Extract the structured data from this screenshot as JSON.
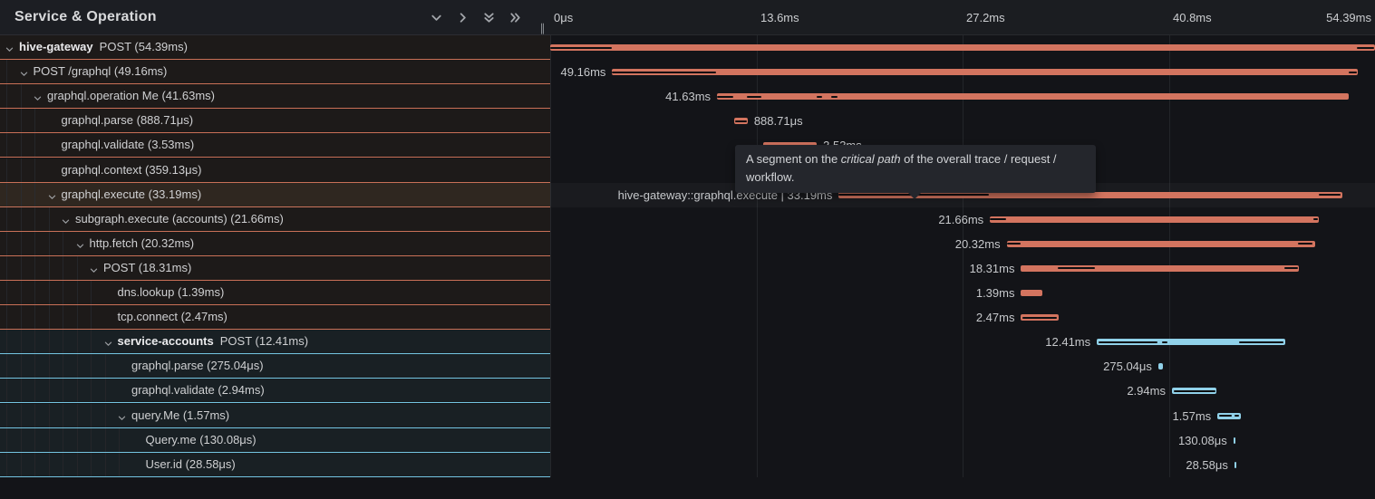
{
  "panel": {
    "title": "Service & Operation",
    "header_icons": [
      "chevron-down-icon",
      "chevron-right-icon",
      "double-chevron-down-icon",
      "double-chevron-right-icon"
    ],
    "resize_handle": "∥"
  },
  "colors": {
    "hive_gateway_service": "#d3745f",
    "hive_gateway_underline": "#c97057",
    "service_accounts_service": "#90d1e9",
    "service_accounts_underline": "#74c5e2",
    "critical_path": "#0d0e10",
    "row_tint_salmon": "#1d1a19",
    "row_tint_blue": "#192024",
    "row_highlight": "#292019"
  },
  "timeline": {
    "total_ms": 54.39,
    "ticks": [
      {
        "label": "0μs",
        "ms": 0
      },
      {
        "label": "13.6ms",
        "ms": 13.6
      },
      {
        "label": "27.2ms",
        "ms": 27.2
      },
      {
        "label": "40.8ms",
        "ms": 40.8
      },
      {
        "label": "54.39ms",
        "ms": 54.39
      }
    ]
  },
  "tooltip": {
    "prefix": "A segment on the ",
    "emphasis": "critical path",
    "suffix": " of the overall trace / request / workflow."
  },
  "spans": [
    {
      "service": "hive-gateway",
      "label": "POST (54.39ms)",
      "level": 0,
      "expandable": true,
      "color": "salmon",
      "start_ms": 0,
      "duration_ms": 54.39,
      "bar_label": "",
      "label_side": "left",
      "critical_ms": [
        [
          0,
          4.05
        ],
        [
          53.2,
          54.35
        ]
      ],
      "highlighted": false
    },
    {
      "service": null,
      "label": "POST /graphql (49.16ms)",
      "level": 1,
      "expandable": true,
      "color": "salmon",
      "start_ms": 4.09,
      "duration_ms": 49.16,
      "bar_label": "49.16ms",
      "label_side": "left",
      "critical_ms": [
        [
          4.09,
          10.95
        ],
        [
          52.65,
          53.2
        ]
      ],
      "highlighted": false
    },
    {
      "service": null,
      "label": "graphql.operation Me (41.63ms)",
      "level": 2,
      "expandable": true,
      "color": "salmon",
      "start_ms": 11.0,
      "duration_ms": 41.63,
      "bar_label": "41.63ms",
      "label_side": "left",
      "critical_ms": [
        [
          11.0,
          12.1
        ],
        [
          12.95,
          13.95
        ],
        [
          17.6,
          17.95
        ],
        [
          18.55,
          18.95
        ]
      ],
      "highlighted": false
    },
    {
      "service": null,
      "label": "graphql.parse (888.71μs)",
      "level": 3,
      "expandable": false,
      "color": "salmon",
      "start_ms": 12.13,
      "duration_ms": 0.88871,
      "bar_label": "888.71μs",
      "label_side": "right",
      "critical_ms": [
        [
          12.2,
          12.95
        ]
      ],
      "highlighted": false
    },
    {
      "service": null,
      "label": "graphql.validate (3.53ms)",
      "level": 3,
      "expandable": false,
      "color": "salmon",
      "start_ms": 14.05,
      "duration_ms": 3.53,
      "bar_label": "3.53ms",
      "label_side": "right",
      "critical_ms": [
        [
          14.1,
          17.5
        ]
      ],
      "highlighted": false
    },
    {
      "service": null,
      "label": "graphql.context (359.13μs)",
      "level": 3,
      "expandable": false,
      "color": "salmon",
      "start_ms": 17.95,
      "duration_ms": 0.35913,
      "bar_label": "359.13μs",
      "label_side": "right",
      "critical_ms": [],
      "highlighted": false
    },
    {
      "service": null,
      "label": "graphql.execute (33.19ms)",
      "level": 3,
      "expandable": true,
      "color": "salmon",
      "start_ms": 19.03,
      "duration_ms": 33.19,
      "bar_label": "hive-gateway::graphql.execute | 33.19ms",
      "label_side": "left",
      "critical_ms": [
        [
          19.03,
          28.95
        ],
        [
          50.7,
          52.1
        ]
      ],
      "highlighted": true
    },
    {
      "service": null,
      "label": "subgraph.execute (accounts) (21.66ms)",
      "level": 4,
      "expandable": true,
      "color": "salmon",
      "start_ms": 29.0,
      "duration_ms": 21.66,
      "bar_label": "21.66ms",
      "label_side": "left",
      "critical_ms": [
        [
          29.0,
          30.05
        ],
        [
          50.35,
          50.62
        ]
      ],
      "highlighted": false
    },
    {
      "service": null,
      "label": "http.fetch (20.32ms)",
      "level": 5,
      "expandable": true,
      "color": "salmon",
      "start_ms": 30.1,
      "duration_ms": 20.32,
      "bar_label": "20.32ms",
      "label_side": "left",
      "critical_ms": [
        [
          30.1,
          31.05
        ],
        [
          49.3,
          50.25
        ]
      ],
      "highlighted": false
    },
    {
      "service": null,
      "label": "POST (18.31ms)",
      "level": 6,
      "expandable": true,
      "color": "salmon",
      "start_ms": 31.05,
      "duration_ms": 18.31,
      "bar_label": "18.31ms",
      "label_side": "left",
      "critical_ms": [
        [
          33.5,
          35.95
        ],
        [
          48.4,
          49.3
        ]
      ],
      "highlighted": false
    },
    {
      "service": null,
      "label": "dns.lookup (1.39ms)",
      "level": 7,
      "expandable": false,
      "color": "salmon",
      "start_ms": 31.05,
      "duration_ms": 1.39,
      "bar_label": "1.39ms",
      "label_side": "left",
      "critical_ms": [],
      "highlighted": false
    },
    {
      "service": null,
      "label": "tcp.connect (2.47ms)",
      "level": 7,
      "expandable": false,
      "color": "salmon",
      "start_ms": 31.05,
      "duration_ms": 2.47,
      "bar_label": "2.47ms",
      "label_side": "left",
      "critical_ms": [
        [
          31.15,
          33.4
        ]
      ],
      "highlighted": false
    },
    {
      "service": "service-accounts",
      "label": "POST (12.41ms)",
      "level": 7,
      "expandable": true,
      "color": "blue",
      "start_ms": 36.05,
      "duration_ms": 12.41,
      "bar_label": "12.41ms",
      "label_side": "left",
      "critical_ms": [
        [
          36.15,
          40.05
        ],
        [
          40.35,
          40.7
        ],
        [
          45.45,
          48.35
        ]
      ],
      "highlighted": false
    },
    {
      "service": null,
      "label": "graphql.parse (275.04μs)",
      "level": 8,
      "expandable": false,
      "color": "blue",
      "start_ms": 40.1,
      "duration_ms": 0.27504,
      "bar_label": "275.04μs",
      "label_side": "left",
      "critical_ms": [],
      "highlighted": false
    },
    {
      "service": null,
      "label": "graphql.validate (2.94ms)",
      "level": 8,
      "expandable": false,
      "color": "blue",
      "start_ms": 41.0,
      "duration_ms": 2.94,
      "bar_label": "2.94ms",
      "label_side": "left",
      "critical_ms": [
        [
          41.1,
          43.85
        ]
      ],
      "highlighted": false
    },
    {
      "service": null,
      "label": "query.Me (1.57ms)",
      "level": 8,
      "expandable": true,
      "color": "blue",
      "start_ms": 44.0,
      "duration_ms": 1.57,
      "bar_label": "1.57ms",
      "label_side": "left",
      "critical_ms": [
        [
          44.1,
          44.95
        ],
        [
          45.15,
          45.42
        ]
      ],
      "highlighted": false
    },
    {
      "service": null,
      "label": "Query.me (130.08μs)",
      "level": 9,
      "expandable": false,
      "color": "blue",
      "start_ms": 45.05,
      "duration_ms": 0.13008,
      "bar_label": "130.08μs",
      "label_side": "left",
      "critical_ms": [],
      "highlighted": false
    },
    {
      "service": null,
      "label": "User.id (28.58μs)",
      "level": 9,
      "expandable": false,
      "color": "blue",
      "start_ms": 45.12,
      "duration_ms": 0.02858,
      "bar_label": "28.58μs",
      "label_side": "left",
      "critical_ms": [],
      "highlighted": false
    }
  ]
}
